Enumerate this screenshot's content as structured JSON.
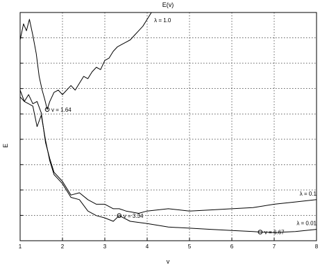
{
  "chart_data": {
    "type": "line",
    "title": "E(v)",
    "xlabel": "v",
    "ylabel": "E",
    "xlim": [
      1,
      8
    ],
    "ylim": [
      0,
      1
    ],
    "grid": true,
    "x_ticks": [
      "1",
      "2",
      "3",
      "4",
      "5",
      "6",
      "7",
      "8"
    ],
    "series": [
      {
        "name": "λ = 1.0",
        "color": "#000000",
        "x": [
          1.0,
          1.08,
          1.15,
          1.22,
          1.3,
          1.38,
          1.45,
          1.52,
          1.58,
          1.64,
          1.7,
          1.8,
          1.9,
          2.0,
          2.1,
          2.2,
          2.3,
          2.4,
          2.5,
          2.6,
          2.7,
          2.8,
          2.9,
          3.0,
          3.1,
          3.2,
          3.3,
          3.4,
          3.5,
          3.6,
          3.7,
          3.8,
          3.9,
          4.0,
          4.1
        ],
        "y": [
          0.88,
          0.95,
          0.92,
          0.97,
          0.9,
          0.82,
          0.72,
          0.66,
          0.62,
          0.575,
          0.61,
          0.65,
          0.66,
          0.64,
          0.66,
          0.68,
          0.66,
          0.69,
          0.72,
          0.71,
          0.74,
          0.76,
          0.75,
          0.79,
          0.8,
          0.83,
          0.85,
          0.86,
          0.87,
          0.88,
          0.9,
          0.92,
          0.94,
          0.97,
          1.0
        ]
      },
      {
        "name": "λ = 0.1",
        "color": "#000000",
        "x": [
          1.0,
          1.1,
          1.2,
          1.3,
          1.4,
          1.5,
          1.6,
          1.7,
          1.8,
          1.9,
          2.0,
          2.2,
          2.4,
          2.6,
          2.8,
          3.0,
          3.2,
          3.34,
          3.5,
          3.8,
          4.0,
          4.5,
          5.0,
          5.5,
          6.0,
          6.5,
          7.0,
          7.5,
          8.0
        ],
        "y": [
          0.66,
          0.61,
          0.64,
          0.6,
          0.61,
          0.56,
          0.43,
          0.36,
          0.3,
          0.28,
          0.26,
          0.2,
          0.21,
          0.18,
          0.16,
          0.16,
          0.14,
          0.14,
          0.13,
          0.12,
          0.13,
          0.14,
          0.13,
          0.135,
          0.14,
          0.145,
          0.16,
          0.17,
          0.18
        ]
      },
      {
        "name": "λ = 0.01",
        "color": "#000000",
        "x": [
          1.0,
          1.1,
          1.2,
          1.3,
          1.4,
          1.5,
          1.6,
          1.7,
          1.8,
          1.9,
          2.0,
          2.2,
          2.4,
          2.6,
          2.8,
          3.0,
          3.2,
          3.34,
          3.6,
          4.0,
          4.5,
          5.0,
          5.5,
          6.0,
          6.5,
          6.67,
          7.0,
          7.5,
          8.0
        ],
        "y": [
          0.63,
          0.61,
          0.6,
          0.59,
          0.5,
          0.55,
          0.44,
          0.35,
          0.29,
          0.27,
          0.25,
          0.19,
          0.18,
          0.13,
          0.11,
          0.1,
          0.085,
          0.11,
          0.085,
          0.075,
          0.06,
          0.055,
          0.05,
          0.045,
          0.04,
          0.038,
          0.036,
          0.04,
          0.05
        ]
      }
    ],
    "annotations": [
      {
        "label": "v = 1.64",
        "x": 1.64,
        "y": 0.575,
        "position": "right"
      },
      {
        "label": "v = 3.34",
        "x": 3.34,
        "y": 0.11,
        "position": "right"
      },
      {
        "label": "v = 6.67",
        "x": 6.67,
        "y": 0.038,
        "position": "right"
      }
    ]
  }
}
